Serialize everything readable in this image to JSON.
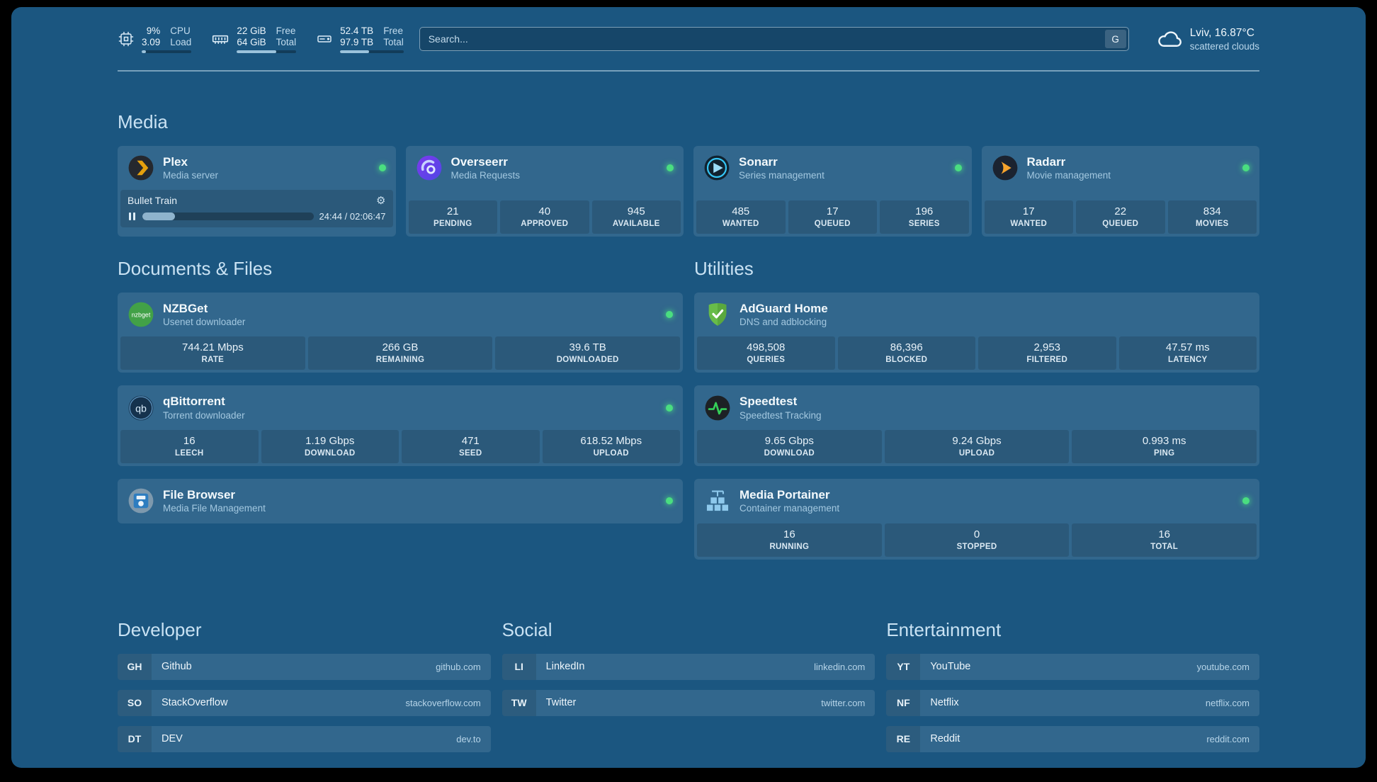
{
  "colors": {
    "status_online": "#4ade80",
    "background": "#1b5680",
    "plex_accent": "#e5a00d",
    "radarr_accent": "#f7a42d",
    "sonarr_accent": "#35c5f4",
    "overseerr_accent": "#7c3aed",
    "adguard_green": "#68bc49",
    "nzbget_green": "#42a147",
    "speedtest_green": "#34d058"
  },
  "icons": {
    "gear": "⚙",
    "nzbget_logo_text": "nzbget",
    "qbittorrent_logo_text": "qb"
  },
  "header": {
    "cpu": {
      "value1": "9%",
      "value2": "3.09",
      "label1": "CPU",
      "label2": "Load",
      "used_percent": 9
    },
    "memory": {
      "value1": "22 GiB",
      "value2": "64 GiB",
      "label1": "Free",
      "label2": "Total",
      "used_percent": 66
    },
    "disk": {
      "value1": "52.4 TB",
      "value2": "97.9 TB",
      "label1": "Free",
      "label2": "Total",
      "used_percent": 46
    },
    "search": {
      "placeholder": "Search...",
      "provider_button": "G"
    },
    "weather": {
      "location": "Lviv, 16.87°C",
      "condition": "scattered clouds"
    }
  },
  "media": {
    "title": "Media",
    "plex": {
      "name": "Plex",
      "subtitle": "Media server",
      "now_playing": "Bullet Train",
      "time": "24:44 / 02:06:47",
      "progress_percent": 19
    },
    "overseerr": {
      "name": "Overseerr",
      "subtitle": "Media Requests",
      "stats": [
        {
          "value": "21",
          "label": "PENDING"
        },
        {
          "value": "40",
          "label": "APPROVED"
        },
        {
          "value": "945",
          "label": "AVAILABLE"
        }
      ]
    },
    "sonarr": {
      "name": "Sonarr",
      "subtitle": "Series management",
      "stats": [
        {
          "value": "485",
          "label": "WANTED"
        },
        {
          "value": "17",
          "label": "QUEUED"
        },
        {
          "value": "196",
          "label": "SERIES"
        }
      ]
    },
    "radarr": {
      "name": "Radarr",
      "subtitle": "Movie management",
      "stats": [
        {
          "value": "17",
          "label": "WANTED"
        },
        {
          "value": "22",
          "label": "QUEUED"
        },
        {
          "value": "834",
          "label": "MOVIES"
        }
      ]
    }
  },
  "documents": {
    "title": "Documents & Files",
    "nzbget": {
      "name": "NZBGet",
      "subtitle": "Usenet downloader",
      "stats": [
        {
          "value": "744.21 Mbps",
          "label": "RATE"
        },
        {
          "value": "266 GB",
          "label": "REMAINING"
        },
        {
          "value": "39.6 TB",
          "label": "DOWNLOADED"
        }
      ]
    },
    "qbittorrent": {
      "name": "qBittorrent",
      "subtitle": "Torrent downloader",
      "stats": [
        {
          "value": "16",
          "label": "LEECH"
        },
        {
          "value": "1.19 Gbps",
          "label": "DOWNLOAD"
        },
        {
          "value": "471",
          "label": "SEED"
        },
        {
          "value": "618.52 Mbps",
          "label": "UPLOAD"
        }
      ]
    },
    "filebrowser": {
      "name": "File Browser",
      "subtitle": "Media File Management"
    }
  },
  "utilities": {
    "title": "Utilities",
    "adguard": {
      "name": "AdGuard Home",
      "subtitle": "DNS and adblocking",
      "stats": [
        {
          "value": "498,508",
          "label": "QUERIES"
        },
        {
          "value": "86,396",
          "label": "BLOCKED"
        },
        {
          "value": "2,953",
          "label": "FILTERED"
        },
        {
          "value": "47.57 ms",
          "label": "LATENCY"
        }
      ]
    },
    "speedtest": {
      "name": "Speedtest",
      "subtitle": "Speedtest Tracking",
      "stats": [
        {
          "value": "9.65 Gbps",
          "label": "DOWNLOAD"
        },
        {
          "value": "9.24 Gbps",
          "label": "UPLOAD"
        },
        {
          "value": "0.993 ms",
          "label": "PING"
        }
      ]
    },
    "portainer": {
      "name": "Media Portainer",
      "subtitle": "Container management",
      "stats": [
        {
          "value": "16",
          "label": "RUNNING"
        },
        {
          "value": "0",
          "label": "STOPPED"
        },
        {
          "value": "16",
          "label": "TOTAL"
        }
      ]
    }
  },
  "bookmarks": {
    "developer": {
      "title": "Developer",
      "items": [
        {
          "abbr": "GH",
          "label": "Github",
          "domain": "github.com"
        },
        {
          "abbr": "SO",
          "label": "StackOverflow",
          "domain": "stackoverflow.com"
        },
        {
          "abbr": "DT",
          "label": "DEV",
          "domain": "dev.to"
        }
      ]
    },
    "social": {
      "title": "Social",
      "items": [
        {
          "abbr": "LI",
          "label": "LinkedIn",
          "domain": "linkedin.com"
        },
        {
          "abbr": "TW",
          "label": "Twitter",
          "domain": "twitter.com"
        }
      ]
    },
    "entertainment": {
      "title": "Entertainment",
      "items": [
        {
          "abbr": "YT",
          "label": "YouTube",
          "domain": "youtube.com"
        },
        {
          "abbr": "NF",
          "label": "Netflix",
          "domain": "netflix.com"
        },
        {
          "abbr": "RE",
          "label": "Reddit",
          "domain": "reddit.com"
        }
      ]
    }
  }
}
